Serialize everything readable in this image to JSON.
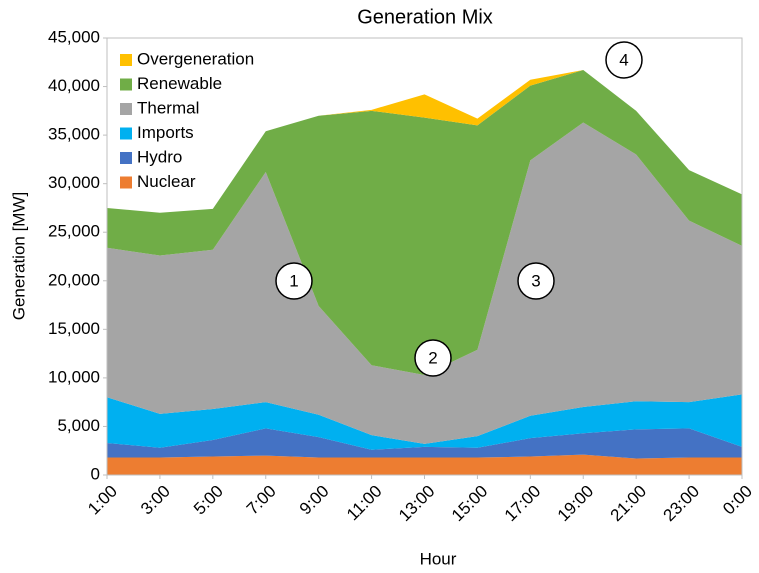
{
  "chart_data": {
    "type": "stacked_area",
    "title": "Generation Mix",
    "x_label": "Hour",
    "y_label": "Generation [MW]",
    "categories": [
      "1:00",
      "3:00",
      "5:00",
      "7:00",
      "9:00",
      "11:00",
      "13:00",
      "15:00",
      "17:00",
      "19:00",
      "21:00",
      "23:00",
      "0:00"
    ],
    "series": [
      {
        "name": "Nuclear",
        "color": "#ED7D31",
        "values": [
          1800,
          1800,
          1900,
          2000,
          1800,
          1800,
          1800,
          1800,
          1900,
          2100,
          1700,
          1800,
          1800
        ]
      },
      {
        "name": "Hydro",
        "color": "#4472C4",
        "values": [
          1500,
          1000,
          1700,
          2800,
          2100,
          800,
          1100,
          1000,
          1900,
          2200,
          3000,
          3000,
          1100
        ]
      },
      {
        "name": "Imports",
        "color": "#00B0F0",
        "values": [
          4700,
          3500,
          3200,
          2700,
          2300,
          1500,
          300,
          1200,
          2300,
          2700,
          2900,
          2700,
          5400
        ]
      },
      {
        "name": "Thermal",
        "color": "#A5A5A5",
        "values": [
          15400,
          16300,
          16400,
          23700,
          11200,
          7200,
          7100,
          8900,
          26300,
          29300,
          25400,
          18700,
          15300
        ]
      },
      {
        "name": "Renewable",
        "color": "#70AD47",
        "values": [
          4100,
          4400,
          4200,
          4200,
          19600,
          26200,
          26500,
          23100,
          7700,
          5400,
          4500,
          5200,
          5300
        ]
      },
      {
        "name": "Overgeneration",
        "color": "#FFC000",
        "values": [
          0,
          0,
          0,
          0,
          0,
          100,
          2400,
          700,
          600,
          0,
          0,
          0,
          0
        ]
      }
    ],
    "ylim": [
      0,
      45000
    ],
    "yticks": [
      0,
      {
        "value": 5000,
        "label": "5,000"
      },
      {
        "value": 10000,
        "label": "10,000"
      },
      {
        "value": 15000,
        "label": "15,000"
      },
      {
        "value": 20000,
        "label": "20,000"
      },
      {
        "value": 25000,
        "label": "25,000"
      },
      {
        "value": 30000,
        "label": "30,000"
      },
      {
        "value": 35000,
        "label": "35,000"
      },
      {
        "value": 40000,
        "label": "40,000"
      },
      {
        "value": 45000,
        "label": "45,000"
      }
    ],
    "legend": "upper-left",
    "annotations": [
      "1",
      "2",
      "3",
      "4"
    ]
  }
}
